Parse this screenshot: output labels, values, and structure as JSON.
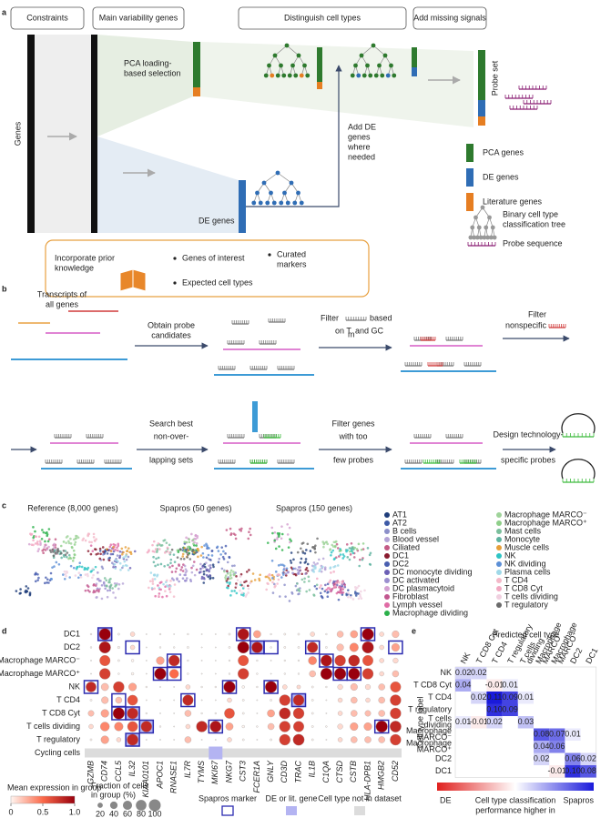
{
  "panel_a": {
    "label": "a",
    "stages": [
      "Constraints",
      "Main variability genes",
      "Distinguish cell types",
      "Add missing signals"
    ],
    "genes_axis": "Genes",
    "pca_selection": [
      "PCA loading-",
      "based selection"
    ],
    "de_genes": "DE genes",
    "add_de": [
      "Add DE",
      "genes",
      "where",
      "needed"
    ],
    "probe_set": "Probe set",
    "legend": [
      {
        "name": "PCA genes",
        "color": "#2e7a2e"
      },
      {
        "name": "DE genes",
        "color": "#2f6db5"
      },
      {
        "name": "Literature genes",
        "color": "#e67e22"
      }
    ],
    "tree_legend": [
      "Binary cell type",
      "classification tree"
    ],
    "probe_legend": "Probe sequence",
    "prior": {
      "title": [
        "Incorporate prior",
        "knowledge"
      ],
      "items": [
        "Genes of interest",
        "Expected cell types"
      ],
      "curated": [
        "Curated",
        "markers"
      ]
    }
  },
  "panel_b": {
    "label": "b",
    "transcripts": [
      "Transcripts of",
      "all genes"
    ],
    "obtain": [
      "Obtain probe",
      "candidates"
    ],
    "filter_tm": [
      "Filter",
      "based",
      "on T",
      "m",
      "and GC"
    ],
    "filter_ns": [
      "Filter",
      "nonspecific"
    ],
    "search": [
      "Search best",
      "non-over-",
      "lapping sets"
    ],
    "filter_few": [
      "Filter genes",
      "with too",
      "few probes"
    ],
    "design": [
      "Design technology-",
      "specific probes"
    ]
  },
  "panel_c": {
    "label": "c",
    "titles": [
      "Reference (8,000 genes)",
      "Spapros (50 genes)",
      "Spapros (150 genes)"
    ],
    "legend": [
      {
        "name": "AT1",
        "color": "#1f3d7a"
      },
      {
        "name": "AT2",
        "color": "#3d5aa6"
      },
      {
        "name": "B cells",
        "color": "#8c8fc9"
      },
      {
        "name": "Blood vessel",
        "color": "#b4a3d6"
      },
      {
        "name": "Ciliated",
        "color": "#c45a85"
      },
      {
        "name": "DC1",
        "color": "#8a1a2e"
      },
      {
        "name": "DC2",
        "color": "#4a5fb0"
      },
      {
        "name": "DC monocyte dividing",
        "color": "#6b5fb5"
      },
      {
        "name": "DC activated",
        "color": "#9b8fcf"
      },
      {
        "name": "DC plasmacytoid",
        "color": "#d4a0d0"
      },
      {
        "name": "Fibroblast",
        "color": "#c2568f"
      },
      {
        "name": "Lymph vessel",
        "color": "#e06ba5"
      },
      {
        "name": "Macrophage dividing",
        "color": "#2bb04a"
      },
      {
        "name": "Macrophage MARCO⁻",
        "color": "#9fd39a"
      },
      {
        "name": "Macrophage MARCO⁺",
        "color": "#8fcf8a"
      },
      {
        "name": "Mast cells",
        "color": "#7bbf9c"
      },
      {
        "name": "Monocyte",
        "color": "#5fb3a0"
      },
      {
        "name": "Muscle cells",
        "color": "#e69f3a"
      },
      {
        "name": "NK",
        "color": "#2ec4c4"
      },
      {
        "name": "NK dividing",
        "color": "#5c8fd6"
      },
      {
        "name": "Plasma cells",
        "color": "#9fd8e8"
      },
      {
        "name": "T CD4",
        "color": "#f4b8c8"
      },
      {
        "name": "T CD8 Cyt",
        "color": "#f2a9c2"
      },
      {
        "name": "T cells dividing",
        "color": "#f0d0e0"
      },
      {
        "name": "T regulatory",
        "color": "#6b6b6b"
      }
    ]
  },
  "panel_d": {
    "label": "d",
    "rows": [
      "DC1",
      "DC2",
      "Macrophage MARCO⁻",
      "Macrophage MARCO⁺",
      "NK",
      "T CD4",
      "T CD8 Cyt",
      "T cells dividing",
      "T regulatory",
      "Cycling cells"
    ],
    "genes": [
      "GZMB",
      "CD74",
      "CCL5",
      "IL32",
      "KIAA0101",
      "APOC1",
      "RNASE1",
      "IL7R",
      "TYMS",
      "MKI67",
      "NKG7",
      "CST3",
      "FCER1A",
      "GNLY",
      "CD3D",
      "TRAC",
      "IL1B",
      "C1QA",
      "CTSD",
      "CSTB",
      "HLA-DPB1",
      "HMGB2",
      "CD52"
    ],
    "expression": [
      [
        0,
        1.0,
        0,
        0.1,
        0,
        0,
        0,
        0,
        0,
        0,
        0,
        0.9,
        0.3,
        0,
        0,
        0,
        0.1,
        0,
        0.2,
        0.3,
        1.0,
        0.1,
        0.2
      ],
      [
        0,
        0.9,
        0,
        0.1,
        0,
        0,
        0,
        0,
        0,
        0,
        0,
        1.0,
        0.9,
        0,
        0,
        0,
        0.8,
        0,
        0.2,
        0.4,
        0.9,
        0.1,
        0.3
      ],
      [
        0,
        0.6,
        0,
        0,
        0,
        0.3,
        0.8,
        0,
        0,
        0,
        0,
        0.6,
        0,
        0,
        0,
        0,
        0.4,
        0.9,
        0.7,
        0.8,
        0.6,
        0.1,
        0.1
      ],
      [
        0,
        0.7,
        0,
        0,
        0,
        1.0,
        0.5,
        0,
        0,
        0,
        0,
        0.7,
        0,
        0,
        0,
        0,
        0.2,
        1.0,
        1.0,
        1.0,
        0.7,
        0.1,
        0.2
      ],
      [
        0.8,
        0.2,
        0.7,
        0.3,
        0,
        0,
        0,
        0.1,
        0,
        0,
        1.0,
        0,
        0,
        1.0,
        0.1,
        0.1,
        0,
        0,
        0.1,
        0.2,
        0.1,
        0.2,
        0.6
      ],
      [
        0,
        0.2,
        0.2,
        0.6,
        0,
        0,
        0,
        0.8,
        0,
        0,
        0.1,
        0,
        0,
        0,
        0.7,
        0.8,
        0,
        0,
        0.1,
        0.2,
        0.1,
        0.2,
        0.7
      ],
      [
        0.2,
        0.3,
        1.0,
        0.8,
        0,
        0,
        0,
        0.2,
        0,
        0,
        0.6,
        0,
        0,
        0.3,
        0.8,
        0.7,
        0,
        0,
        0.1,
        0.2,
        0.2,
        0.2,
        0.7
      ],
      [
        0.1,
        0.4,
        0.4,
        0.6,
        0.8,
        0,
        0,
        0.1,
        0.8,
        0.9,
        0.3,
        0,
        0,
        0.2,
        0.7,
        0.7,
        0,
        0,
        0.1,
        0.3,
        0.3,
        1.0,
        0.8
      ],
      [
        0,
        0.3,
        0.1,
        0.8,
        0,
        0,
        0,
        0.2,
        0,
        0,
        0.1,
        0,
        0,
        0,
        0.7,
        0.8,
        0,
        0,
        0.1,
        0.2,
        0.2,
        0.2,
        0.7
      ],
      [
        null,
        null,
        null,
        null,
        null,
        null,
        null,
        null,
        null,
        null,
        null,
        null,
        null,
        null,
        null,
        null,
        null,
        null,
        null,
        null,
        null,
        null,
        null
      ]
    ],
    "fraction": [
      [
        2,
        95,
        3,
        15,
        1,
        2,
        1,
        2,
        1,
        1,
        3,
        90,
        40,
        2,
        3,
        3,
        15,
        2,
        30,
        40,
        95,
        15,
        35
      ],
      [
        2,
        95,
        4,
        15,
        1,
        2,
        2,
        3,
        1,
        1,
        3,
        95,
        85,
        2,
        3,
        3,
        80,
        3,
        35,
        55,
        95,
        15,
        45
      ],
      [
        1,
        80,
        3,
        5,
        1,
        45,
        85,
        2,
        1,
        1,
        2,
        80,
        2,
        1,
        2,
        2,
        50,
        90,
        85,
        90,
        80,
        15,
        20
      ],
      [
        1,
        85,
        2,
        5,
        1,
        95,
        60,
        2,
        1,
        1,
        2,
        85,
        2,
        1,
        2,
        2,
        30,
        95,
        95,
        95,
        85,
        15,
        30
      ],
      [
        75,
        40,
        85,
        45,
        2,
        1,
        1,
        15,
        2,
        2,
        95,
        5,
        2,
        95,
        15,
        10,
        3,
        2,
        20,
        35,
        20,
        30,
        80
      ],
      [
        3,
        35,
        30,
        75,
        1,
        1,
        1,
        80,
        1,
        1,
        15,
        3,
        1,
        3,
        85,
        85,
        3,
        1,
        15,
        30,
        15,
        30,
        85
      ],
      [
        25,
        45,
        95,
        85,
        2,
        1,
        1,
        30,
        2,
        2,
        75,
        3,
        1,
        40,
        90,
        85,
        3,
        1,
        15,
        30,
        25,
        30,
        85
      ],
      [
        15,
        60,
        55,
        75,
        85,
        2,
        1,
        15,
        85,
        90,
        40,
        5,
        2,
        30,
        85,
        80,
        3,
        2,
        20,
        45,
        45,
        95,
        90
      ],
      [
        3,
        45,
        15,
        90,
        1,
        1,
        1,
        30,
        1,
        1,
        15,
        3,
        1,
        3,
        85,
        90,
        3,
        1,
        15,
        30,
        30,
        30,
        85
      ],
      [
        null,
        null,
        null,
        null,
        null,
        null,
        null,
        null,
        null,
        null,
        null,
        null,
        null,
        null,
        null,
        null,
        null,
        null,
        null,
        null,
        null,
        null,
        null
      ]
    ],
    "spapros_markers": [
      [
        0,
        1
      ],
      [
        0,
        11
      ],
      [
        0,
        20
      ],
      [
        1,
        3
      ],
      [
        1,
        12
      ],
      [
        1,
        13
      ],
      [
        1,
        16
      ],
      [
        1,
        22
      ],
      [
        2,
        6
      ],
      [
        2,
        17
      ],
      [
        3,
        5
      ],
      [
        3,
        6
      ],
      [
        3,
        18
      ],
      [
        3,
        19
      ],
      [
        4,
        0
      ],
      [
        4,
        10
      ],
      [
        4,
        13
      ],
      [
        5,
        2
      ],
      [
        5,
        7
      ],
      [
        5,
        15
      ],
      [
        6,
        2
      ],
      [
        6,
        3
      ],
      [
        7,
        4
      ],
      [
        7,
        9
      ],
      [
        7,
        21
      ],
      [
        8,
        3
      ]
    ],
    "de_lit": [
      [
        0,
        1
      ],
      [
        1,
        12
      ],
      [
        5,
        15
      ],
      [
        6,
        3
      ],
      [
        7,
        4
      ],
      [
        8,
        3
      ],
      [
        9,
        9
      ]
    ],
    "color_title": "Mean expression in group",
    "clim": [
      0,
      1
    ],
    "cticks": [
      0,
      0.5,
      {
        "value": 1,
        "label": "1.0"
      }
    ],
    "size_title": [
      "Fraction of cells",
      "in group (%)"
    ],
    "size_ticks": [
      20,
      40,
      60,
      80,
      100
    ],
    "key_labels": [
      "Spapros marker",
      "DE or lit. gene",
      "Cell type not in dataset"
    ]
  },
  "panel_e": {
    "label": "e",
    "title": "Predicted cell type",
    "y_label": "Cell type label",
    "rows": [
      [
        "NK"
      ],
      [
        "T CD8 Cyt"
      ],
      [
        "T CD4"
      ],
      [
        "T regulatory"
      ],
      [
        "T cells",
        "dividing"
      ],
      [
        "Macrophage",
        "MARCO⁻"
      ],
      [
        "Macrophage",
        "MARCO⁺"
      ],
      [
        "DC2"
      ],
      [
        "DC1"
      ]
    ],
    "columns": [
      [
        "NK"
      ],
      [
        "T CD8 Cyt"
      ],
      [
        "T CD4"
      ],
      [
        "T regulatory"
      ],
      [
        "T cells",
        "dividing"
      ],
      [
        "Macrophage",
        "MARCO⁻"
      ],
      [
        "Macrophage",
        "MARCO⁺"
      ],
      [
        "DC2"
      ],
      [
        "DC1"
      ]
    ],
    "values": [
      [
        0.02,
        0.02,
        null,
        null,
        null,
        null,
        null,
        null,
        null
      ],
      [
        0.04,
        null,
        -0.01,
        0.01,
        null,
        null,
        null,
        null,
        null
      ],
      [
        null,
        0.02,
        0.11,
        0.09,
        0.01,
        null,
        null,
        null,
        null
      ],
      [
        null,
        null,
        0.1,
        0.09,
        null,
        null,
        null,
        null,
        null
      ],
      [
        0.01,
        -0.01,
        0.02,
        null,
        0.03,
        null,
        null,
        null,
        null
      ],
      [
        null,
        null,
        null,
        null,
        null,
        0.08,
        0.07,
        0.01,
        null
      ],
      [
        null,
        null,
        null,
        null,
        null,
        0.04,
        0.06,
        null,
        null
      ],
      [
        null,
        null,
        null,
        null,
        null,
        0.02,
        null,
        0.06,
        0.02
      ],
      [
        null,
        null,
        null,
        null,
        null,
        null,
        -0.01,
        0.1,
        0.08
      ]
    ],
    "value_labels": [
      [
        "0.02",
        "0.02",
        null,
        null,
        null,
        null,
        null,
        null,
        null
      ],
      [
        "0.04",
        null,
        "-0.01",
        "0.01",
        null,
        null,
        null,
        null,
        null
      ],
      [
        null,
        "0.02",
        "0.11",
        "0.09",
        "0.01",
        null,
        null,
        null,
        null
      ],
      [
        null,
        null,
        "0.10",
        "0.09",
        null,
        null,
        null,
        null,
        null
      ],
      [
        "0.01",
        "-0.01",
        "0.02",
        null,
        "0.03",
        null,
        null,
        null,
        null
      ],
      [
        null,
        null,
        null,
        null,
        null,
        "0.08",
        "0.07",
        "0.01",
        null
      ],
      [
        null,
        null,
        null,
        null,
        null,
        "0.04",
        "0.06",
        null,
        null
      ],
      [
        null,
        null,
        null,
        null,
        null,
        "0.02",
        null,
        "0.06",
        "0.02"
      ],
      [
        null,
        null,
        null,
        null,
        null,
        null,
        "-0.01",
        "0.10",
        "0.08"
      ]
    ],
    "clim": [
      -0.11,
      0.11
    ],
    "negative_color": "#e0201e",
    "positive_color": "#1a1adb",
    "colorbar_ends": [
      "DE",
      "Spapros"
    ],
    "colorbar_title": [
      "Cell type classification",
      "performance higher in"
    ]
  }
}
